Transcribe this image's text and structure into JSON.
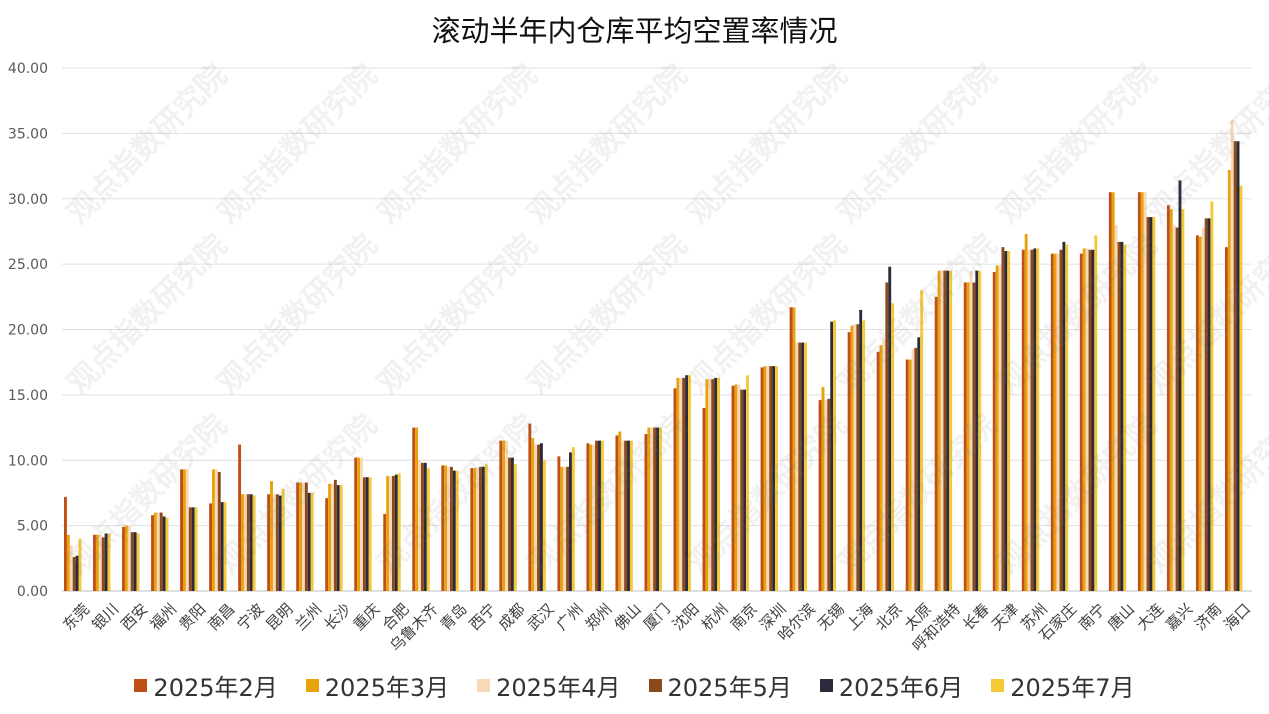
{
  "title": "滚动半年内仓库平均空置率情况",
  "watermark": "观点指数研究院",
  "chart_data": {
    "type": "bar",
    "title": "滚动半年内仓库平均空置率情况",
    "xlabel": "",
    "ylabel": "",
    "ylim": [
      0,
      40
    ],
    "yticks": [
      "0.00",
      "5.00",
      "10.00",
      "15.00",
      "20.00",
      "25.00",
      "30.00",
      "35.00",
      "40.00"
    ],
    "grid": true,
    "legend_position": "bottom",
    "categories": [
      "东莞",
      "银川",
      "西安",
      "福州",
      "贵阳",
      "南昌",
      "宁波",
      "昆明",
      "兰州",
      "长沙",
      "重庆",
      "合肥",
      "乌鲁木齐",
      "青岛",
      "西宁",
      "成都",
      "武汉",
      "广州",
      "郑州",
      "佛山",
      "厦门",
      "沈阳",
      "杭州",
      "南京",
      "深圳",
      "哈尔滨",
      "无锡",
      "上海",
      "北京",
      "太原",
      "呼和浩特",
      "长春",
      "天津",
      "苏州",
      "石家庄",
      "南宁",
      "唐山",
      "大连",
      "嘉兴",
      "济南",
      "海口"
    ],
    "series": [
      {
        "name": "2025年2月",
        "color": "#C04F15",
        "values": [
          7.2,
          4.3,
          4.9,
          5.8,
          9.3,
          6.7,
          11.2,
          7.4,
          8.3,
          7.1,
          10.2,
          5.9,
          12.5,
          9.6,
          9.4,
          11.5,
          12.8,
          10.3,
          11.3,
          11.9,
          12.0,
          15.5,
          14.0,
          15.7,
          17.1,
          21.7,
          14.6,
          19.8,
          18.3,
          17.7,
          22.5,
          23.6,
          24.4,
          26.1,
          25.8,
          25.8,
          30.5,
          30.5,
          29.5,
          27.2,
          26.3
        ]
      },
      {
        "name": "2025年3月",
        "color": "#E8A20C",
        "values": [
          4.3,
          4.3,
          5.0,
          6.0,
          9.3,
          9.3,
          7.4,
          8.4,
          8.3,
          8.2,
          10.2,
          8.8,
          12.5,
          9.6,
          9.4,
          11.5,
          11.7,
          9.5,
          11.2,
          12.2,
          12.5,
          16.3,
          16.2,
          15.8,
          17.2,
          21.7,
          15.6,
          20.3,
          18.8,
          17.7,
          24.5,
          23.6,
          24.9,
          27.3,
          25.8,
          26.2,
          30.5,
          30.5,
          29.2,
          27.1,
          32.2
        ]
      },
      {
        "name": "2025年4月",
        "color": "#F7D9B8",
        "values": [
          3.5,
          4.3,
          5.0,
          6.0,
          9.3,
          9.3,
          7.4,
          7.4,
          8.3,
          8.2,
          10.2,
          8.8,
          10.0,
          9.5,
          9.4,
          11.5,
          11.2,
          9.5,
          11.2,
          11.5,
          12.5,
          16.3,
          16.2,
          15.8,
          17.2,
          19.0,
          14.6,
          20.4,
          19.3,
          18.5,
          24.5,
          24.5,
          24.9,
          26.1,
          25.8,
          26.2,
          28.0,
          30.5,
          28.0,
          27.8,
          36.0
        ]
      },
      {
        "name": "2025年5月",
        "color": "#8B4A1D",
        "values": [
          2.6,
          4.1,
          4.5,
          6.0,
          6.4,
          9.1,
          7.4,
          7.4,
          8.3,
          8.5,
          8.7,
          8.8,
          9.8,
          9.5,
          9.5,
          10.2,
          11.2,
          9.5,
          11.5,
          11.5,
          12.5,
          16.3,
          16.2,
          15.4,
          17.2,
          19.0,
          14.7,
          20.4,
          23.6,
          18.6,
          24.5,
          23.6,
          26.3,
          26.1,
          26.1,
          26.1,
          26.7,
          28.6,
          27.8,
          28.5,
          34.4
        ]
      },
      {
        "name": "2025年6月",
        "color": "#2B2B3C",
        "values": [
          2.7,
          4.4,
          4.5,
          5.7,
          6.4,
          6.8,
          7.4,
          7.3,
          7.5,
          8.1,
          8.7,
          8.9,
          9.8,
          9.2,
          9.5,
          10.2,
          11.3,
          10.6,
          11.5,
          11.5,
          12.5,
          16.5,
          16.3,
          15.4,
          17.2,
          19.0,
          20.6,
          21.5,
          24.8,
          19.4,
          24.5,
          24.5,
          26.0,
          26.2,
          26.7,
          26.1,
          26.7,
          28.6,
          31.4,
          28.5,
          34.4
        ]
      },
      {
        "name": "2025年7月",
        "color": "#F5C836",
        "values": [
          4.0,
          4.4,
          4.4,
          5.6,
          6.4,
          6.8,
          7.3,
          7.8,
          7.5,
          8.1,
          8.7,
          9.0,
          9.4,
          9.2,
          9.7,
          9.7,
          10.0,
          11.0,
          11.5,
          11.5,
          12.5,
          16.5,
          16.3,
          16.5,
          17.2,
          19.0,
          20.7,
          20.7,
          22.0,
          23.0,
          24.5,
          24.5,
          26.0,
          26.2,
          26.5,
          27.2,
          26.5,
          28.6,
          29.2,
          29.8,
          31.0
        ]
      }
    ]
  }
}
